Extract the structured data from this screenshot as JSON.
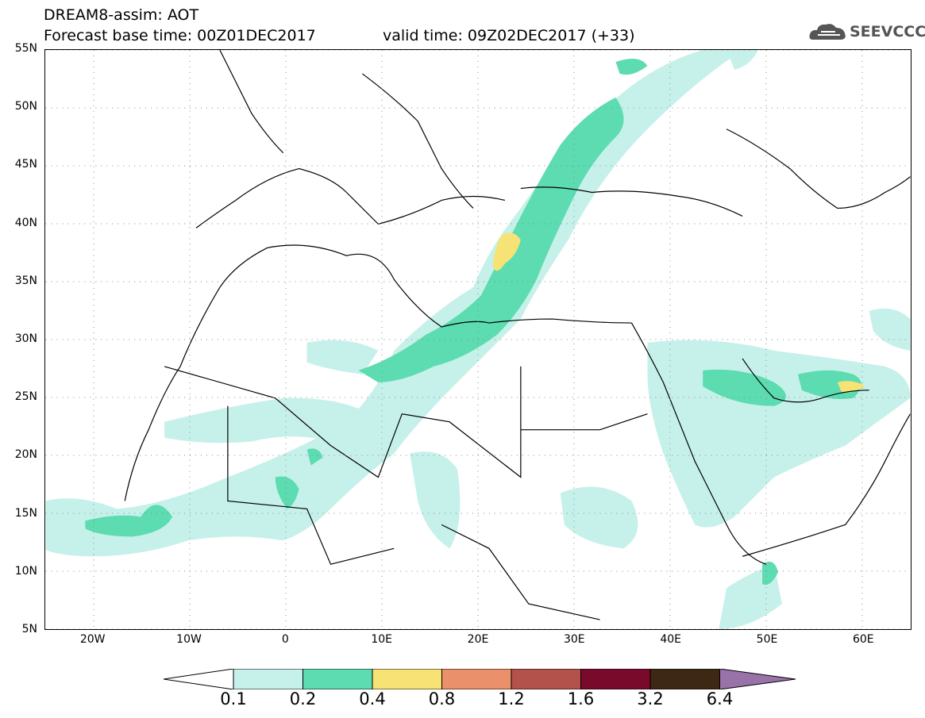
{
  "header": {
    "title": "DREAM8-assim: AOT",
    "base_time": "Forecast base time: 00Z01DEC2017",
    "valid_time": "valid time: 09Z02DEC2017 (+33)",
    "logo": "SEEVCCC"
  },
  "map": {
    "lat_labels": [
      "55N",
      "50N",
      "45N",
      "40N",
      "35N",
      "30N",
      "25N",
      "20N",
      "15N",
      "10N",
      "5N"
    ],
    "lon_labels": [
      "20W",
      "10W",
      "0",
      "10E",
      "20E",
      "30E",
      "40E",
      "50E",
      "60E"
    ],
    "lat_range": [
      5,
      55
    ],
    "lon_range": [
      -25,
      65
    ],
    "grid": true
  },
  "legend": {
    "levels": [
      "0.1",
      "0.2",
      "0.4",
      "0.8",
      "1.2",
      "1.6",
      "3.2",
      "6.4"
    ],
    "colors": [
      "#c6f1ea",
      "#5cdcb0",
      "#f6e275",
      "#ea906a",
      "#b2524a",
      "#7a0a2c",
      "#3c2814",
      "#9a72aa"
    ]
  },
  "colors": {
    "land": "#ffffff",
    "border": "#000000",
    "aot_low": "#c6f1ea",
    "aot_mid": "#5cdcb0",
    "aot_high": "#f6e275"
  }
}
